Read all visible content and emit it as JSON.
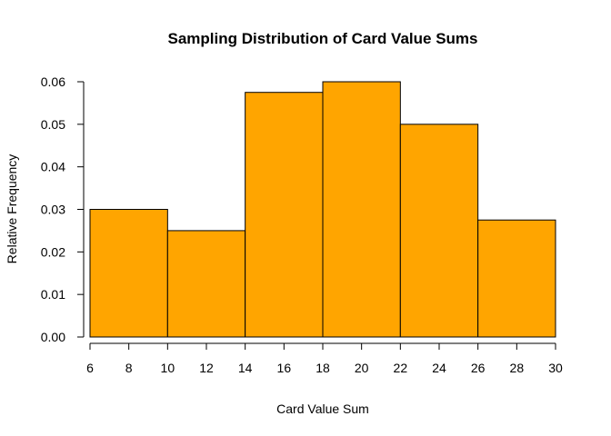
{
  "chart_data": {
    "type": "bar",
    "title": "Sampling Distribution of Card Value Sums",
    "xlabel": "Card Value Sum",
    "ylabel": "Relative Frequency",
    "bins": [
      [
        6,
        10
      ],
      [
        10,
        14
      ],
      [
        14,
        18
      ],
      [
        18,
        22
      ],
      [
        22,
        26
      ],
      [
        26,
        30
      ]
    ],
    "values": [
      0.03,
      0.025,
      0.0575,
      0.06,
      0.05,
      0.0275
    ],
    "xlim": [
      6,
      30
    ],
    "ylim": [
      0,
      0.06
    ],
    "x_ticks": [
      "6",
      "8",
      "10",
      "12",
      "14",
      "16",
      "18",
      "20",
      "22",
      "24",
      "26",
      "28",
      "30"
    ],
    "y_ticks": [
      "0.00",
      "0.01",
      "0.02",
      "0.03",
      "0.04",
      "0.05",
      "0.06"
    ],
    "bar_color": "#FFA500",
    "grid": false
  }
}
